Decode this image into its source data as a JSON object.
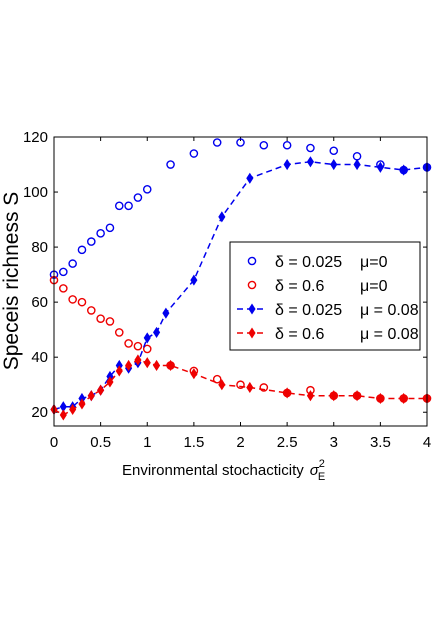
{
  "chart_data": {
    "type": "scatter",
    "xlabel": "Environmental stochacticity",
    "xlabel_symbol": "σ",
    "xlabel_sub": "E",
    "xlabel_sup": "2",
    "ylabel": "Speceis richness S",
    "xlim": [
      0,
      4
    ],
    "ylim": [
      15,
      120
    ],
    "xticks": [
      "0",
      "0.5",
      "1",
      "1.5",
      "2",
      "2.5",
      "3",
      "3.5",
      "4"
    ],
    "yticks": [
      "20",
      "40",
      "60",
      "80",
      "100",
      "120"
    ],
    "xtick_values": [
      0,
      0.5,
      1,
      1.5,
      2,
      2.5,
      3,
      3.5,
      4
    ],
    "ytick_values": [
      20,
      40,
      60,
      80,
      100,
      120
    ],
    "grid": false,
    "legend_position": "right-middle",
    "series": [
      {
        "legend_delta": "δ = 0.025",
        "legend_mu": "μ=0",
        "color": "#0000ee",
        "marker": "open-circle",
        "line": "none",
        "x": [
          0,
          0.1,
          0.2,
          0.3,
          0.4,
          0.5,
          0.6,
          0.7,
          0.8,
          0.9,
          1.0,
          1.25,
          1.5,
          1.75,
          2.0,
          2.25,
          2.5,
          2.75,
          3.0,
          3.25,
          3.5,
          3.75,
          4.0
        ],
        "y": [
          70,
          71,
          74,
          79,
          82,
          85,
          87,
          95,
          95,
          98,
          101,
          110,
          114,
          118,
          118,
          117,
          117,
          116,
          115,
          113,
          110,
          108,
          109
        ]
      },
      {
        "legend_delta": "δ = 0.6",
        "legend_mu": "μ=0",
        "color": "#ee0000",
        "marker": "open-circle",
        "line": "none",
        "x": [
          0,
          0.1,
          0.2,
          0.3,
          0.4,
          0.5,
          0.6,
          0.7,
          0.8,
          0.9,
          1.0,
          1.25,
          1.5,
          1.75,
          2.0,
          2.25,
          2.5,
          2.75,
          3.0,
          3.25,
          3.5,
          3.75,
          4.0
        ],
        "y": [
          68,
          65,
          61,
          60,
          57,
          54,
          53,
          49,
          45,
          44,
          43,
          37,
          35,
          32,
          30,
          29,
          27,
          28,
          26,
          26,
          25,
          25,
          25
        ]
      },
      {
        "legend_delta": "δ = 0.025",
        "legend_mu": "μ = 0.08",
        "color": "#0000ee",
        "marker": "filled-diamond",
        "line": "dashed",
        "x": [
          0,
          0.1,
          0.2,
          0.3,
          0.4,
          0.5,
          0.6,
          0.7,
          0.8,
          0.9,
          1.0,
          1.1,
          1.2,
          1.5,
          1.8,
          2.1,
          2.5,
          2.75,
          3.0,
          3.25,
          3.5,
          3.75,
          4.0
        ],
        "y": [
          21,
          22,
          22,
          25,
          26,
          28,
          33,
          37,
          36,
          38,
          47,
          49,
          56,
          68,
          91,
          105,
          110,
          111,
          110,
          110,
          109,
          108,
          109
        ]
      },
      {
        "legend_delta": "δ = 0.6",
        "legend_mu": "μ = 0.08",
        "color": "#ee0000",
        "marker": "filled-diamond",
        "line": "dashed",
        "x": [
          0,
          0.1,
          0.2,
          0.3,
          0.4,
          0.5,
          0.6,
          0.7,
          0.8,
          0.9,
          1.0,
          1.1,
          1.25,
          1.5,
          1.8,
          2.1,
          2.5,
          2.75,
          3.0,
          3.25,
          3.5,
          3.75,
          4.0
        ],
        "y": [
          21,
          19,
          21,
          23,
          26,
          28,
          31,
          35,
          37,
          39,
          38,
          37,
          37,
          34,
          30,
          29,
          27,
          26,
          26,
          26,
          25,
          25,
          25
        ]
      }
    ]
  }
}
